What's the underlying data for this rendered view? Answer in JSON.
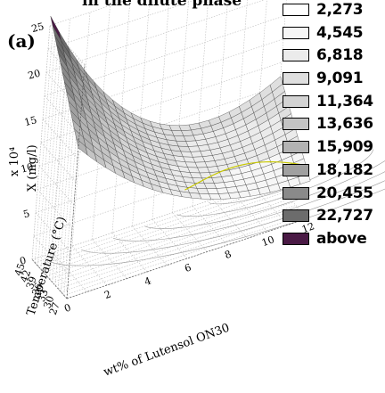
{
  "title": "in the dilute phase",
  "panel_label": "(a)",
  "chart_data": {
    "type": "surface3d",
    "x_axis": {
      "label": "wt% of Lutensol ON30",
      "ticks": [
        "0",
        "2",
        "4",
        "6",
        "8",
        "10",
        "12"
      ]
    },
    "y_axis": {
      "label": "Temperature (°C)",
      "ticks": [
        "27",
        "30",
        "33",
        "36",
        "39",
        "42",
        "45"
      ]
    },
    "z_axis": {
      "label": "X (mg/l)",
      "ticks": [
        "0",
        "5",
        "10",
        "15",
        "20",
        "25"
      ],
      "exponent_label": "x 10⁴",
      "range": [
        0,
        25
      ]
    },
    "legend": {
      "placement": "right",
      "entries": [
        {
          "label": "2,273",
          "color": "#ffffff"
        },
        {
          "label": "4,545",
          "color": "#f6f6f6"
        },
        {
          "label": "6,818",
          "color": "#ebebeb"
        },
        {
          "label": "9,091",
          "color": "#dfdfdf"
        },
        {
          "label": "11,364",
          "color": "#d3d3d3"
        },
        {
          "label": "13,636",
          "color": "#c4c4c4"
        },
        {
          "label": "15,909",
          "color": "#b3b3b3"
        },
        {
          "label": "18,182",
          "color": "#a0a0a0"
        },
        {
          "label": "20,455",
          "color": "#8a8a8a"
        },
        {
          "label": "22,727",
          "color": "#6c6c6c"
        },
        {
          "label": "above",
          "color": "#4a1a45"
        }
      ]
    }
  }
}
